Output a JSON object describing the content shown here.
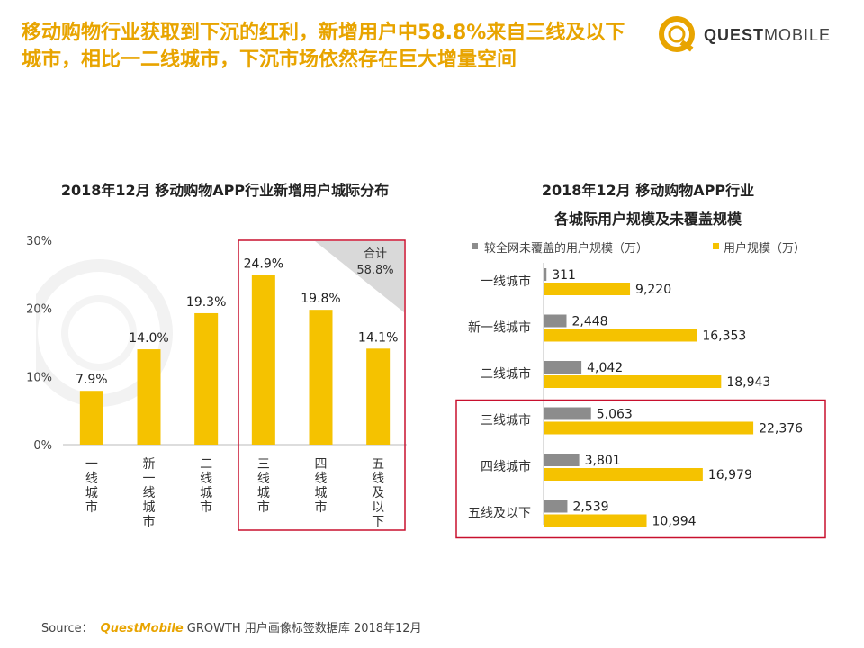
{
  "header": {
    "headline": "移动购物行业获取到下沉的红利，新增用户中58.8%来自三线及以下城市，相比一二线城市，下沉市场依然存在巨大增量空间",
    "logo_quest": "QUEST",
    "logo_mobile": "MOBILE"
  },
  "footer": {
    "source_label": "Source：",
    "source_brand": "QuestMobile",
    "source_text": "GROWTH 用户画像标签数据库 2018年12月"
  },
  "colors": {
    "accent": "#e8a400",
    "bar_yellow": "#f5c200",
    "bar_gray": "#8c8c8c",
    "highlight_border": "#c8102e"
  },
  "chart_data": [
    {
      "type": "bar",
      "title": "2018年12月 移动购物APP行业新增用户城际分布",
      "categories": [
        "一线城市",
        "新一线城市",
        "二线城市",
        "三线城市",
        "四线城市",
        "五线及以下"
      ],
      "values": [
        7.9,
        14.0,
        19.3,
        24.9,
        19.8,
        14.1
      ],
      "value_labels": [
        "7.9%",
        "14.0%",
        "19.3%",
        "24.9%",
        "19.8%",
        "14.1%"
      ],
      "ylim": [
        0,
        30
      ],
      "yticks": [
        "0%",
        "10%",
        "20%",
        "30%"
      ],
      "ytick_values": [
        0,
        10,
        20,
        30
      ],
      "annotation": {
        "line1": "合计",
        "line2": "58.8%"
      },
      "highlight_categories": [
        "三线城市",
        "四线城市",
        "五线及以下"
      ]
    },
    {
      "type": "bar",
      "orientation": "horizontal",
      "title_line1": "2018年12月 移动购物APP行业",
      "title_line2": "各城际用户规模及未覆盖规模",
      "categories": [
        "一线城市",
        "新一线城市",
        "二线城市",
        "三线城市",
        "四线城市",
        "五线及以下"
      ],
      "series": [
        {
          "name": "较全网未覆盖的用户规模（万）",
          "values": [
            311,
            2448,
            4042,
            5063,
            3801,
            2539
          ],
          "labels": [
            "311",
            "2,448",
            "4,042",
            "5,063",
            "3,801",
            "2,539"
          ]
        },
        {
          "name": "用户规模（万）",
          "values": [
            9220,
            16353,
            18943,
            22376,
            16979,
            10994
          ],
          "labels": [
            "9,220",
            "16,353",
            "18,943",
            "22,376",
            "16,979",
            "10,994"
          ]
        }
      ],
      "xlim": [
        0,
        24000
      ],
      "highlight_categories": [
        "三线城市",
        "四线城市",
        "五线及以下"
      ]
    }
  ]
}
